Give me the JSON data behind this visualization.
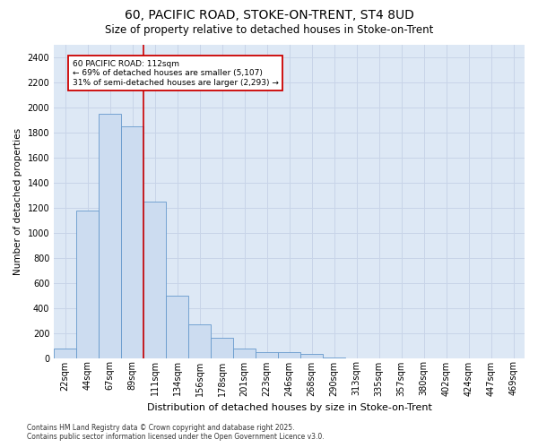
{
  "title_line1": "60, PACIFIC ROAD, STOKE-ON-TRENT, ST4 8UD",
  "title_line2": "Size of property relative to detached houses in Stoke-on-Trent",
  "xlabel": "Distribution of detached houses by size in Stoke-on-Trent",
  "ylabel": "Number of detached properties",
  "categories": [
    "22sqm",
    "44sqm",
    "67sqm",
    "89sqm",
    "111sqm",
    "134sqm",
    "156sqm",
    "178sqm",
    "201sqm",
    "223sqm",
    "246sqm",
    "268sqm",
    "290sqm",
    "313sqm",
    "335sqm",
    "357sqm",
    "380sqm",
    "402sqm",
    "424sqm",
    "447sqm",
    "469sqm"
  ],
  "values": [
    75,
    1175,
    1950,
    1850,
    1250,
    500,
    265,
    160,
    75,
    50,
    50,
    35,
    5,
    0,
    0,
    0,
    0,
    0,
    0,
    0,
    0
  ],
  "bar_color": "#ccdcf0",
  "bar_edge_color": "#6699cc",
  "vline_x_index": 3.5,
  "vline_color": "#cc0000",
  "annotation_text": "60 PACIFIC ROAD: 112sqm\n← 69% of detached houses are smaller (5,107)\n31% of semi-detached houses are larger (2,293) →",
  "annotation_box_color": "#ffffff",
  "annotation_box_edge": "#cc0000",
  "ylim": [
    0,
    2500
  ],
  "yticks": [
    0,
    200,
    400,
    600,
    800,
    1000,
    1200,
    1400,
    1600,
    1800,
    2000,
    2200,
    2400
  ],
  "grid_color": "#c8d4e8",
  "background_color": "#dde8f5",
  "footnote": "Contains HM Land Registry data © Crown copyright and database right 2025.\nContains public sector information licensed under the Open Government Licence v3.0.",
  "title_fontsize": 10,
  "subtitle_fontsize": 8.5,
  "tick_fontsize": 7,
  "ylabel_fontsize": 7.5,
  "xlabel_fontsize": 8,
  "footnote_fontsize": 5.5,
  "annotation_fontsize": 6.5,
  "bar_width": 1.0
}
